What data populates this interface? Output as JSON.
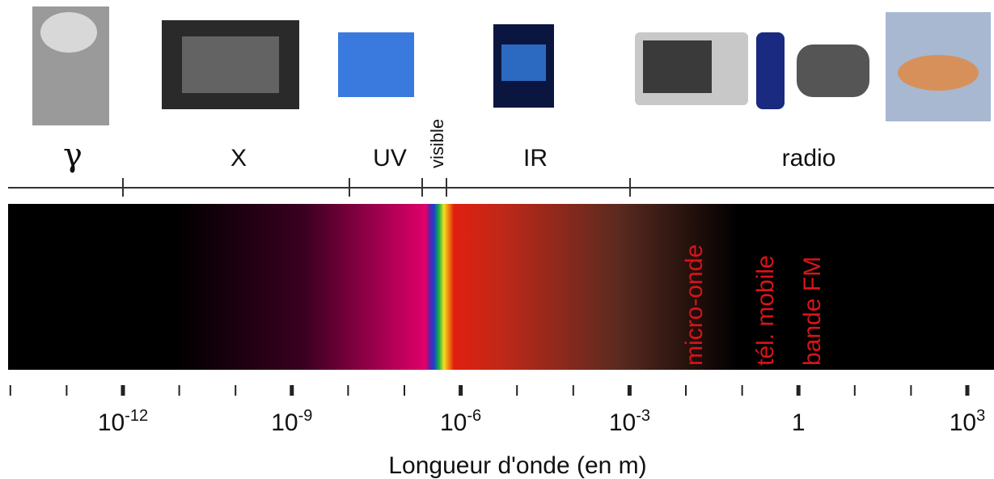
{
  "bands": [
    "γ",
    "X",
    "UV",
    "visible",
    "IR",
    "radio"
  ],
  "radio_uses": [
    "micro-onde",
    "tél. mobile",
    "bande FM"
  ],
  "axis": {
    "ticks": [
      {
        "base": "10",
        "exponent": "-12"
      },
      {
        "base": "10",
        "exponent": "-9"
      },
      {
        "base": "10",
        "exponent": "-6"
      },
      {
        "base": "10",
        "exponent": "-3"
      },
      {
        "base": "1"
      },
      {
        "base": "10",
        "exponent": "3"
      }
    ],
    "title": "Longueur d'onde (en m)"
  }
}
